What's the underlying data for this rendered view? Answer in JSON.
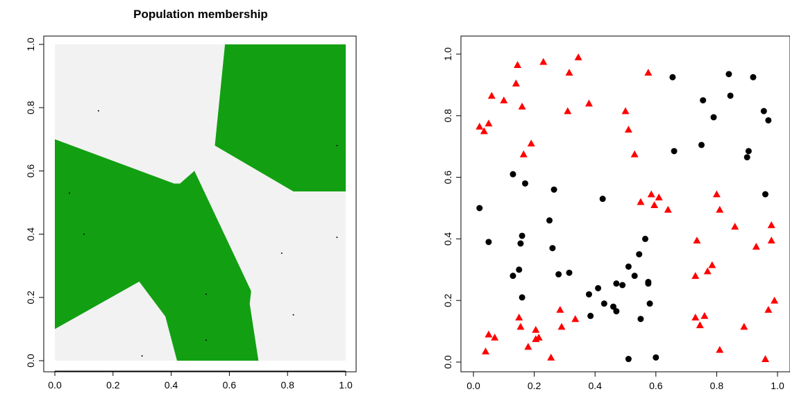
{
  "chart_data": [
    {
      "type": "heatmap",
      "title": "Population membership",
      "xlabel": "",
      "ylabel": "",
      "xlim": [
        0,
        1
      ],
      "ylim": [
        0,
        1
      ],
      "xticks": [
        "0.0",
        "0.2",
        "0.4",
        "0.6",
        "0.8",
        "1.0"
      ],
      "yticks": [
        "0.0",
        "0.2",
        "0.4",
        "0.6",
        "0.8",
        "1.0"
      ],
      "colors": {
        "background": "#f2f2f2",
        "region": "#12a012"
      },
      "regions": [
        {
          "name": "",
          "polygon": [
            [
              0.0,
              0.7
            ],
            [
              0.0,
              0.1
            ],
            [
              0.29,
              0.25
            ],
            [
              0.38,
              0.14
            ],
            [
              0.42,
              0.0
            ],
            [
              0.7,
              0.0
            ],
            [
              0.67,
              0.18
            ],
            [
              0.675,
              0.22
            ],
            [
              0.48,
              0.6
            ],
            [
              0.43,
              0.56
            ],
            [
              0.41,
              0.56
            ]
          ]
        },
        {
          "name": "",
          "polygon": [
            [
              0.585,
              1.0
            ],
            [
              1.0,
              1.0
            ],
            [
              1.0,
              0.535
            ],
            [
              0.82,
              0.535
            ],
            [
              0.55,
              0.68
            ]
          ]
        }
      ],
      "dots": [
        [
          0.15,
          0.79
        ],
        [
          0.05,
          0.53
        ],
        [
          0.1,
          0.4
        ],
        [
          0.3,
          0.015
        ],
        [
          0.52,
          0.21
        ],
        [
          0.52,
          0.065
        ],
        [
          0.78,
          0.34
        ],
        [
          0.82,
          0.145
        ],
        [
          0.97,
          0.39
        ],
        [
          0.97,
          0.68
        ]
      ]
    },
    {
      "type": "scatter",
      "title": "",
      "xlabel": "",
      "ylabel": "",
      "xlim": [
        0,
        1
      ],
      "ylim": [
        0,
        1
      ],
      "xticks": [
        "0.0",
        "0.2",
        "0.4",
        "0.6",
        "0.8",
        "1.0"
      ],
      "yticks": [
        "0.0",
        "0.2",
        "0.4",
        "0.6",
        "0.8",
        "1.0"
      ],
      "series": [
        {
          "name": "",
          "marker": "circle",
          "color": "#000000",
          "points": [
            [
              0.02,
              0.5
            ],
            [
              0.05,
              0.39
            ],
            [
              0.13,
              0.61
            ],
            [
              0.17,
              0.58
            ],
            [
              0.16,
              0.41
            ],
            [
              0.155,
              0.385
            ],
            [
              0.15,
              0.3
            ],
            [
              0.13,
              0.28
            ],
            [
              0.16,
              0.21
            ],
            [
              0.25,
              0.46
            ],
            [
              0.265,
              0.56
            ],
            [
              0.26,
              0.37
            ],
            [
              0.28,
              0.285
            ],
            [
              0.315,
              0.29
            ],
            [
              0.425,
              0.53
            ],
            [
              0.38,
              0.22
            ],
            [
              0.385,
              0.15
            ],
            [
              0.41,
              0.24
            ],
            [
              0.43,
              0.19
            ],
            [
              0.46,
              0.18
            ],
            [
              0.47,
              0.165
            ],
            [
              0.47,
              0.255
            ],
            [
              0.49,
              0.25
            ],
            [
              0.51,
              0.31
            ],
            [
              0.53,
              0.28
            ],
            [
              0.545,
              0.35
            ],
            [
              0.565,
              0.4
            ],
            [
              0.575,
              0.26
            ],
            [
              0.575,
              0.255
            ],
            [
              0.58,
              0.19
            ],
            [
              0.55,
              0.14
            ],
            [
              0.51,
              0.01
            ],
            [
              0.6,
              0.015
            ],
            [
              0.655,
              0.925
            ],
            [
              0.66,
              0.685
            ],
            [
              0.755,
              0.85
            ],
            [
              0.75,
              0.705
            ],
            [
              0.79,
              0.795
            ],
            [
              0.84,
              0.935
            ],
            [
              0.845,
              0.865
            ],
            [
              0.92,
              0.925
            ],
            [
              0.955,
              0.815
            ],
            [
              0.97,
              0.785
            ],
            [
              0.905,
              0.685
            ],
            [
              0.9,
              0.665
            ],
            [
              0.96,
              0.545
            ]
          ]
        },
        {
          "name": "",
          "marker": "triangle",
          "color": "#ff0000",
          "points": [
            [
              0.02,
              0.765
            ],
            [
              0.035,
              0.75
            ],
            [
              0.05,
              0.775
            ],
            [
              0.06,
              0.865
            ],
            [
              0.1,
              0.85
            ],
            [
              0.14,
              0.905
            ],
            [
              0.145,
              0.965
            ],
            [
              0.16,
              0.83
            ],
            [
              0.19,
              0.71
            ],
            [
              0.165,
              0.675
            ],
            [
              0.23,
              0.975
            ],
            [
              0.31,
              0.815
            ],
            [
              0.315,
              0.94
            ],
            [
              0.345,
              0.99
            ],
            [
              0.38,
              0.84
            ],
            [
              0.575,
              0.94
            ],
            [
              0.5,
              0.815
            ],
            [
              0.51,
              0.755
            ],
            [
              0.53,
              0.675
            ],
            [
              0.55,
              0.52
            ],
            [
              0.585,
              0.545
            ],
            [
              0.595,
              0.51
            ],
            [
              0.61,
              0.535
            ],
            [
              0.64,
              0.495
            ],
            [
              0.735,
              0.395
            ],
            [
              0.8,
              0.545
            ],
            [
              0.81,
              0.495
            ],
            [
              0.86,
              0.44
            ],
            [
              0.93,
              0.375
            ],
            [
              0.98,
              0.445
            ],
            [
              0.98,
              0.395
            ],
            [
              0.73,
              0.28
            ],
            [
              0.77,
              0.295
            ],
            [
              0.785,
              0.315
            ],
            [
              0.73,
              0.145
            ],
            [
              0.745,
              0.12
            ],
            [
              0.76,
              0.15
            ],
            [
              0.81,
              0.04
            ],
            [
              0.89,
              0.115
            ],
            [
              0.97,
              0.17
            ],
            [
              0.99,
              0.2
            ],
            [
              0.96,
              0.01
            ],
            [
              0.04,
              0.035
            ],
            [
              0.05,
              0.09
            ],
            [
              0.07,
              0.08
            ],
            [
              0.15,
              0.145
            ],
            [
              0.155,
              0.115
            ],
            [
              0.18,
              0.05
            ],
            [
              0.205,
              0.105
            ],
            [
              0.205,
              0.075
            ],
            [
              0.215,
              0.08
            ],
            [
              0.255,
              0.015
            ],
            [
              0.285,
              0.17
            ],
            [
              0.29,
              0.115
            ],
            [
              0.335,
              0.14
            ]
          ]
        }
      ]
    }
  ]
}
